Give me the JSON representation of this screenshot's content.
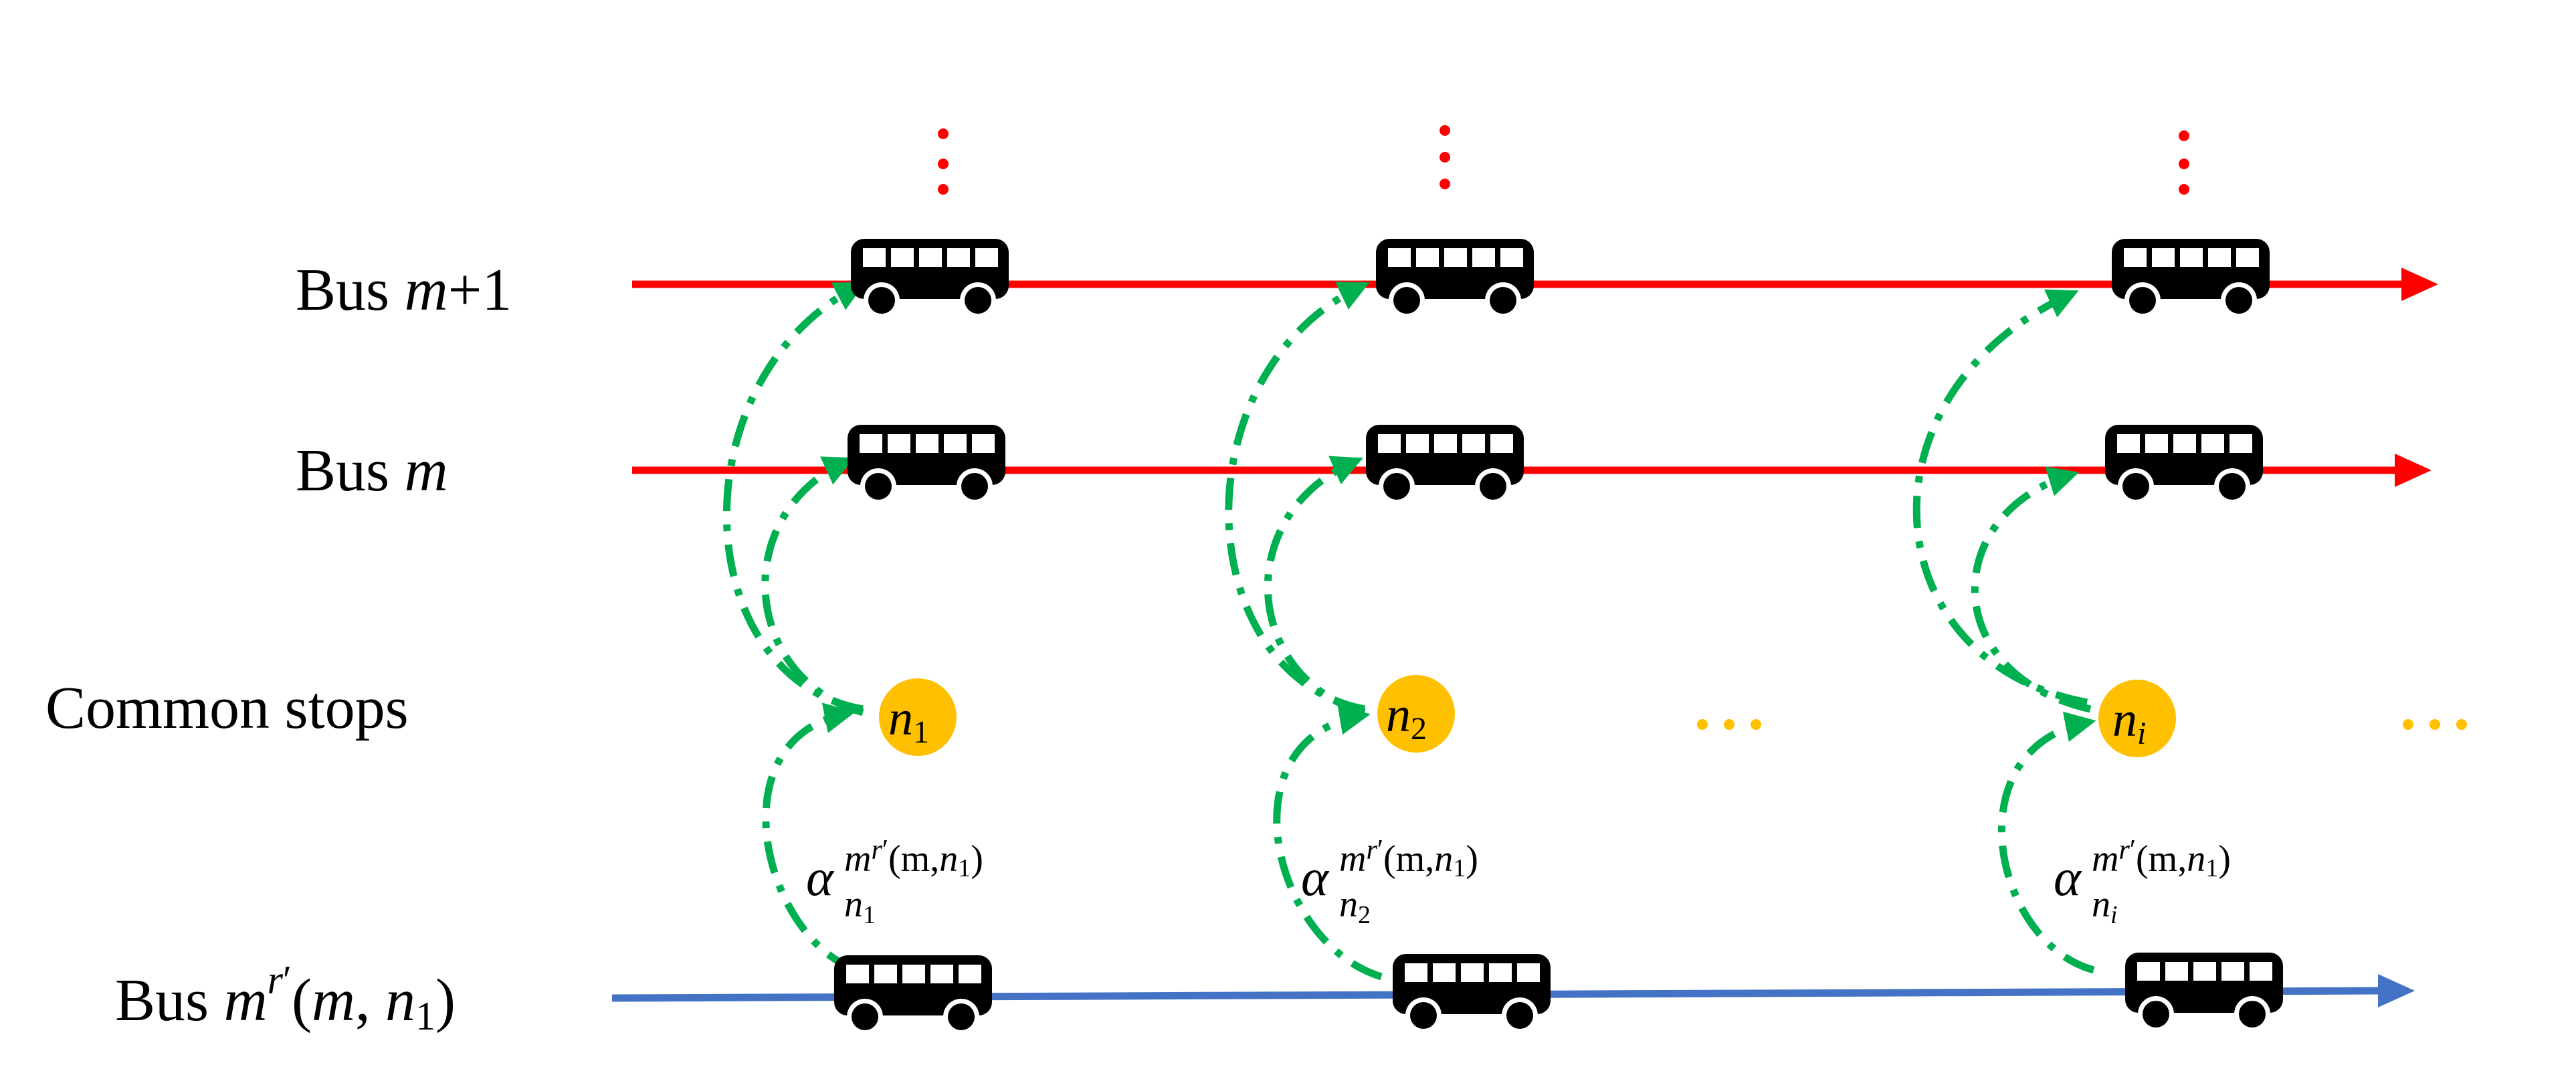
{
  "labels": {
    "bus_m_plus_1": "Bus m+1",
    "bus_m": "Bus m",
    "common_stops": "Common stops",
    "bus_mr": "Bus m^{r'}(m, n_1)"
  },
  "row_labels": {
    "bus_prefix": "Bus",
    "m": "m",
    "plus_one": "+1",
    "r": "r",
    "prime": "′",
    "open_paren": "(",
    "comma": ",",
    "close_paren": ")",
    "n": "n",
    "one": "1"
  },
  "stops": [
    {
      "n": "n",
      "sub": "1"
    },
    {
      "n": "n",
      "sub": "2"
    },
    {
      "n": "n",
      "sub": "i"
    }
  ],
  "alpha_labels": [
    {
      "alpha": "α",
      "sub_n": "n",
      "sub_idx": "1",
      "sup_m": "m",
      "sup_r": "r",
      "sup_prime": "′",
      "sup_args_open": "(m,",
      "sup_n": "n",
      "sup_n_sub": "1",
      "sup_args_close": ")"
    },
    {
      "alpha": "α",
      "sub_n": "n",
      "sub_idx": "2",
      "sup_m": "m",
      "sup_r": "r",
      "sup_prime": "′",
      "sup_args_open": "(m,",
      "sup_n": "n",
      "sup_n_sub": "1",
      "sup_args_close": ")"
    },
    {
      "alpha": "α",
      "sub_n": "n",
      "sub_idx": "i",
      "sup_m": "m",
      "sup_r": "r",
      "sup_prime": "′",
      "sup_args_open": "(m,",
      "sup_n": "n",
      "sup_n_sub": "1",
      "sup_args_close": ")"
    }
  ],
  "ellipsis_h": "···",
  "ellipsis_v": "⋮",
  "icons": [
    "bus-icon",
    "arrowhead-icon",
    "stop-node-icon"
  ],
  "colors": {
    "red_route": "#ff0000",
    "blue_route": "#4472c4",
    "stop_fill": "#ffc000",
    "transfer_green": "#00b050",
    "ellipsis_red": "#ff0000",
    "ellipsis_orange": "#ffc000",
    "text": "#000000",
    "bus": "#000000"
  }
}
